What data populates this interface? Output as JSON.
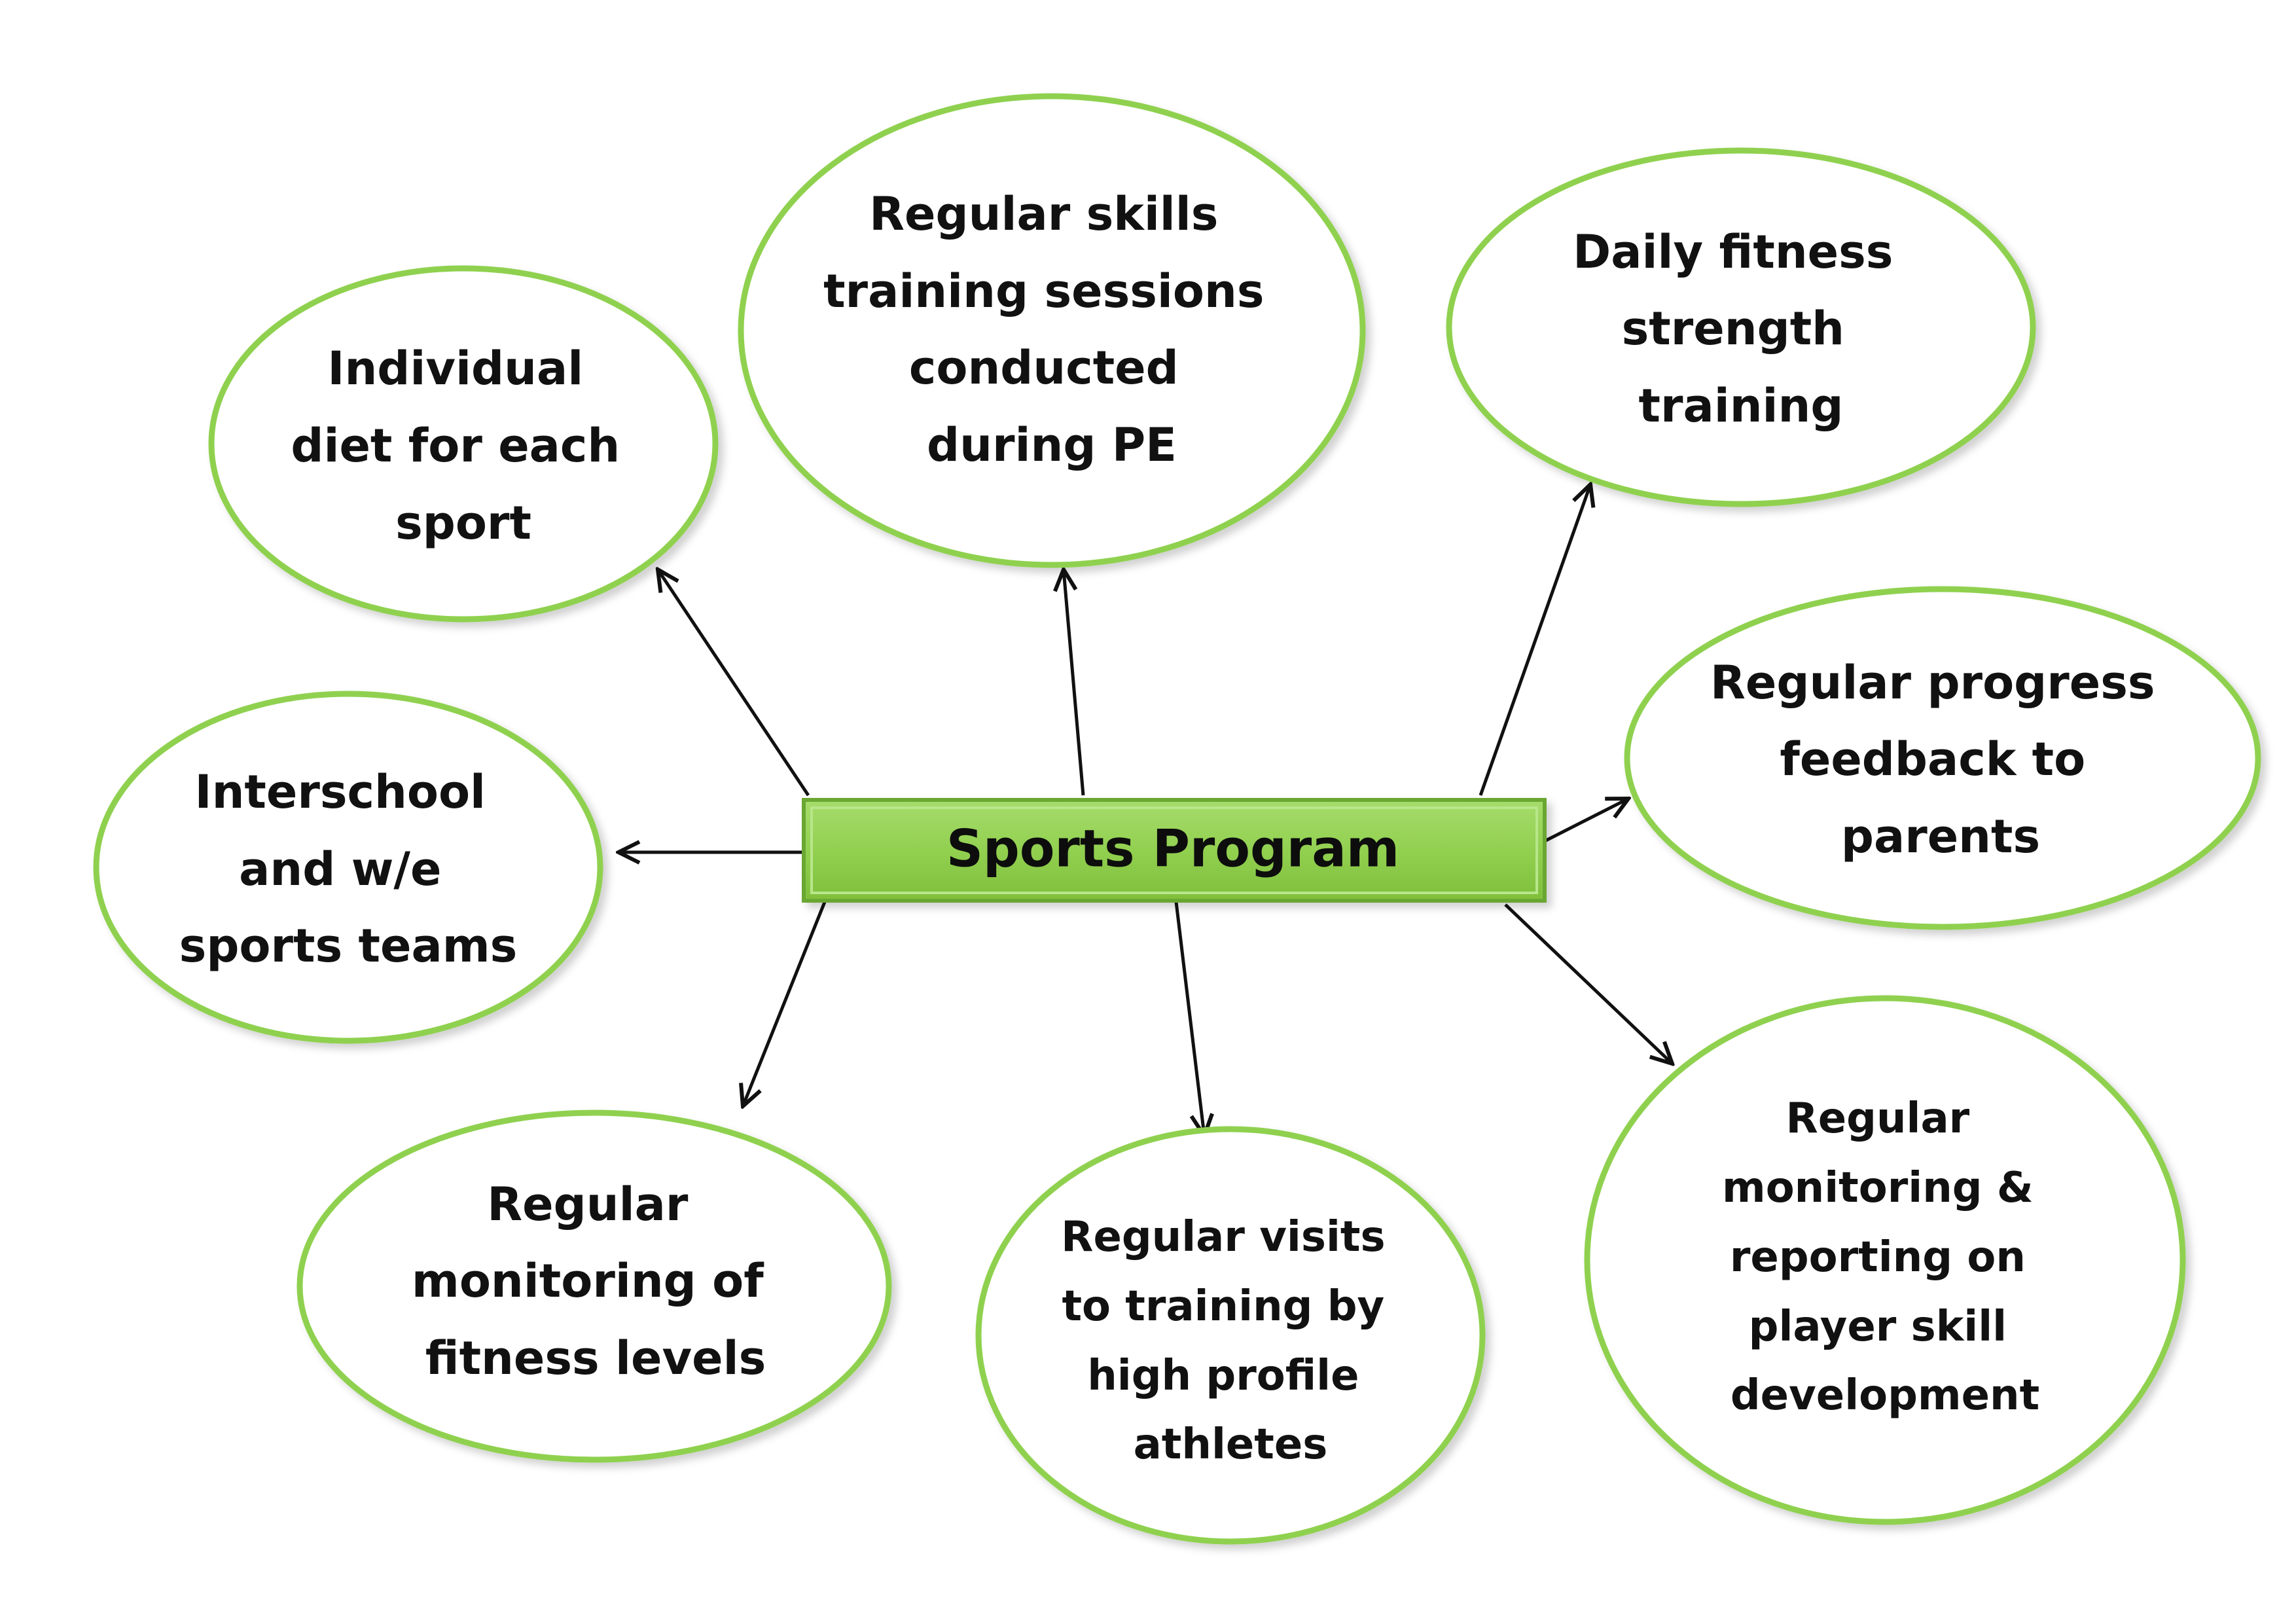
{
  "center": {
    "label": "Sports Program"
  },
  "colors": {
    "node_outline": "#8fd14f",
    "center_fill": "#92d050",
    "arrow": "#111111",
    "text": "#111111"
  },
  "nodes": [
    {
      "id": "diet",
      "lines": [
        "Individual",
        "diet for each",
        "sport"
      ]
    },
    {
      "id": "skills",
      "lines": [
        "Regular skills",
        "training sessions",
        "conducted",
        "during PE"
      ]
    },
    {
      "id": "fitness",
      "lines": [
        "Daily fitness",
        "strength",
        "training"
      ]
    },
    {
      "id": "feedback",
      "lines": [
        "Regular progress",
        "feedback to",
        "parents"
      ]
    },
    {
      "id": "interschool",
      "lines": [
        "Interschool",
        "and w/e",
        "sports teams"
      ]
    },
    {
      "id": "monitoring-fitness",
      "lines": [
        "Regular",
        "monitoring of",
        "fitness levels"
      ]
    },
    {
      "id": "visits",
      "lines": [
        "Regular visits",
        "to training by",
        "high profile",
        "athletes"
      ]
    },
    {
      "id": "skill-development",
      "lines": [
        "Regular",
        "monitoring &",
        "reporting on",
        "player skill",
        "development"
      ]
    }
  ]
}
